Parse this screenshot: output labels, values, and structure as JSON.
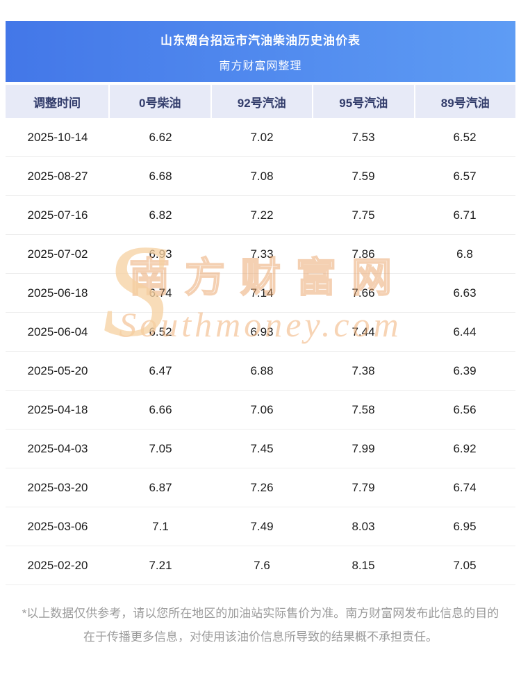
{
  "header": {
    "title_line1": "山东烟台招远市汽油柴油历史油价表",
    "title_line2": "南方财富网整理"
  },
  "chart_data": {
    "type": "table",
    "title": "山东烟台招远市汽油柴油历史油价表",
    "subtitle": "南方财富网整理",
    "columns": [
      "调整时间",
      "0号柴油",
      "92号汽油",
      "95号汽油",
      "89号汽油"
    ],
    "rows": [
      [
        "2025-10-14",
        "6.62",
        "7.02",
        "7.53",
        "6.52"
      ],
      [
        "2025-08-27",
        "6.68",
        "7.08",
        "7.59",
        "6.57"
      ],
      [
        "2025-07-16",
        "6.82",
        "7.22",
        "7.75",
        "6.71"
      ],
      [
        "2025-07-02",
        "6.93",
        "7.33",
        "7.86",
        "6.8"
      ],
      [
        "2025-06-18",
        "6.74",
        "7.14",
        "7.66",
        "6.63"
      ],
      [
        "2025-06-04",
        "6.52",
        "6.93",
        "7.44",
        "6.44"
      ],
      [
        "2025-05-20",
        "6.47",
        "6.88",
        "7.38",
        "6.39"
      ],
      [
        "2025-04-18",
        "6.66",
        "7.06",
        "7.58",
        "6.56"
      ],
      [
        "2025-04-03",
        "7.05",
        "7.45",
        "7.99",
        "6.92"
      ],
      [
        "2025-03-20",
        "6.87",
        "7.26",
        "7.79",
        "6.74"
      ],
      [
        "2025-03-06",
        "7.1",
        "7.49",
        "8.03",
        "6.95"
      ],
      [
        "2025-02-20",
        "7.21",
        "7.6",
        "8.15",
        "7.05"
      ]
    ]
  },
  "watermark": {
    "swoosh": "S",
    "line1": "南方财富网",
    "line2": "Southmoney.com"
  },
  "footer": {
    "disclaimer": "*以上数据仅供参考，请以您所在地区的加油站实际售价为准。南方财富网发布此信息的目的在于传播更多信息，对使用该油价信息所导致的结果概不承担责任。"
  },
  "colors": {
    "banner_gradient_start": "#4377e8",
    "banner_gradient_end": "#5e9cf4",
    "table_header_bg": "#e7eaf7",
    "table_header_text": "#323c6b",
    "row_text": "#1b1b1b",
    "footer_text": "#9b9b9b",
    "watermark": "#f0b078"
  }
}
